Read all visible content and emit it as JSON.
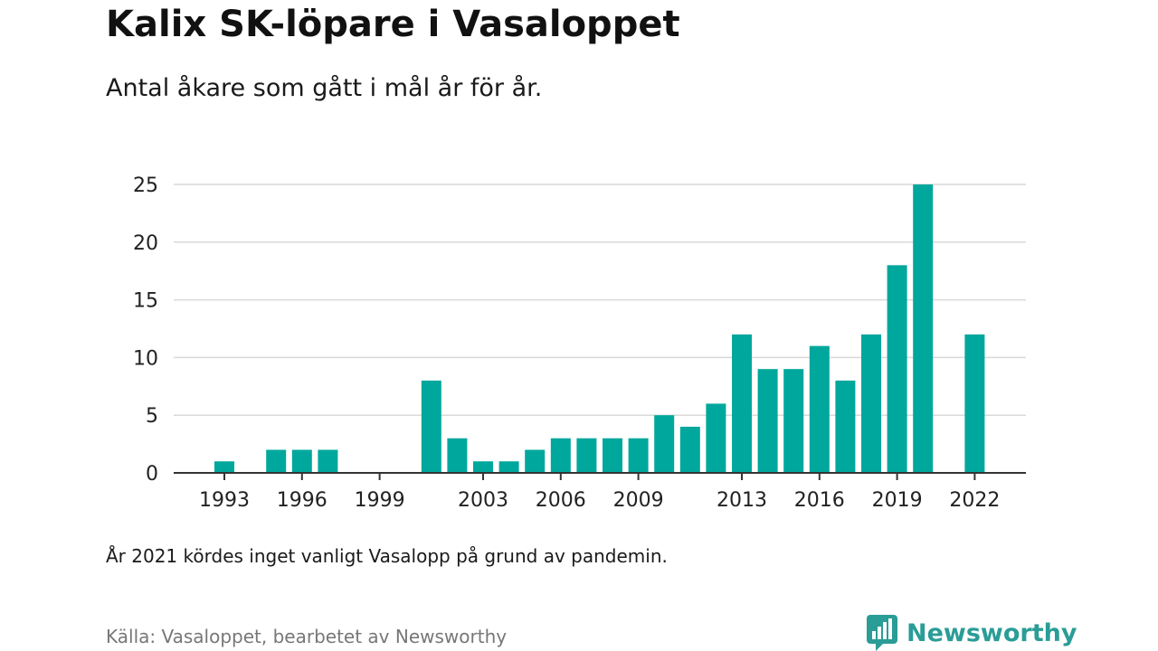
{
  "header": {
    "title": "Kalix SK-löpare i Vasaloppet",
    "subtitle": "Antal åkare som gått i mål år för år."
  },
  "footer": {
    "note": "År 2021 kördes inget vanligt Vasalopp på grund av pandemin.",
    "source": "Källa: Vasaloppet, bearbetet av Newsworthy",
    "brand": "Newsworthy"
  },
  "colors": {
    "bar": "#00a79d",
    "brand": "#2a9d96",
    "grid": "#d9d9d9",
    "axis": "#333333"
  },
  "chart_data": {
    "type": "bar",
    "title": "Kalix SK-löpare i Vasaloppet",
    "subtitle": "Antal åkare som gått i mål år för år.",
    "xlabel": "",
    "ylabel": "",
    "ylim": [
      0,
      25
    ],
    "yticks": [
      0,
      5,
      10,
      15,
      20,
      25
    ],
    "xticks": [
      1993,
      1996,
      1999,
      2003,
      2006,
      2009,
      2013,
      2016,
      2019,
      2022
    ],
    "categories": [
      1993,
      1994,
      1995,
      1996,
      1997,
      1998,
      1999,
      2000,
      2001,
      2002,
      2003,
      2004,
      2005,
      2006,
      2007,
      2008,
      2009,
      2010,
      2011,
      2012,
      2013,
      2014,
      2015,
      2016,
      2017,
      2018,
      2019,
      2020,
      2021,
      2022
    ],
    "values": [
      1,
      0,
      2,
      2,
      2,
      0,
      0,
      0,
      8,
      3,
      1,
      1,
      2,
      3,
      3,
      3,
      3,
      5,
      4,
      6,
      12,
      9,
      9,
      11,
      8,
      12,
      18,
      25,
      0,
      12
    ],
    "grid": true,
    "legend": "none"
  }
}
